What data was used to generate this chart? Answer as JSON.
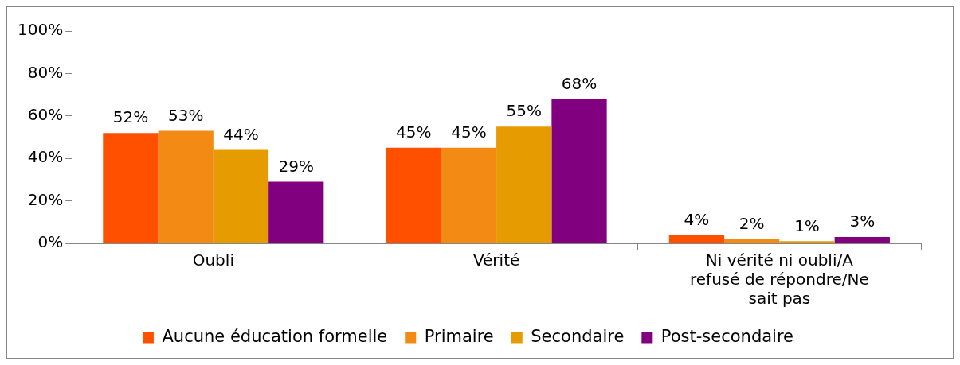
{
  "chart_data": {
    "type": "bar",
    "categories": [
      "Oubli",
      "Vérité",
      "Ni vérité ni oubli/A refusé de répondre/Ne sait pas"
    ],
    "series": [
      {
        "name": "Aucune éducation formelle",
        "color": "#ff5000",
        "values": [
          52,
          45,
          4
        ],
        "value_labels": [
          "52%",
          "45%",
          "4%"
        ]
      },
      {
        "name": "Primaire",
        "color": "#f28a14",
        "values": [
          53,
          45,
          2
        ],
        "value_labels": [
          "53%",
          "45%",
          "2%"
        ]
      },
      {
        "name": "Secondaire",
        "color": "#e69c00",
        "values": [
          44,
          55,
          1
        ],
        "value_labels": [
          "44%",
          "55%",
          "1%"
        ]
      },
      {
        "name": "Post-secondaire",
        "color": "#800080",
        "values": [
          29,
          68,
          3
        ],
        "value_labels": [
          "29%",
          "68%",
          "3%"
        ]
      }
    ],
    "ylim": [
      0,
      100
    ],
    "yticks": [
      {
        "value": 0,
        "label": "0%"
      },
      {
        "value": 20,
        "label": "20%"
      },
      {
        "value": 40,
        "label": "40%"
      },
      {
        "value": 60,
        "label": "60%"
      },
      {
        "value": 80,
        "label": "80%"
      },
      {
        "value": 100,
        "label": "100%"
      }
    ],
    "grid": false,
    "legend": "bottom"
  }
}
